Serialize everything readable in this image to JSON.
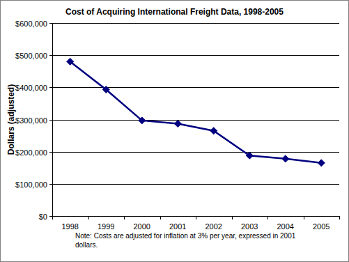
{
  "chart_data": {
    "type": "line",
    "title": "Cost of Acquiring International Freight Data, 1998-2005",
    "y_label": "Dollars (adjusted)",
    "note": "Note: Costs are adjusted for inflation at 3% per year, expressed in 2001 dollars.",
    "categories": [
      "1998",
      "1999",
      "2000",
      "2001",
      "2002",
      "2003",
      "2004",
      "2005"
    ],
    "values": [
      480000,
      393000,
      297000,
      287000,
      265000,
      188000,
      178000,
      165000
    ],
    "color": "#000080",
    "marker": "diamond",
    "line_style": "solid",
    "ylim": [
      0,
      600000
    ],
    "yticks": [
      {
        "value": 0,
        "label": "$0"
      },
      {
        "value": 100000,
        "label": "$100,000"
      },
      {
        "value": 200000,
        "label": "$200,000"
      },
      {
        "value": 300000,
        "label": "$300,000"
      },
      {
        "value": 400000,
        "label": "$400,000"
      },
      {
        "value": 500000,
        "label": "$500,000"
      },
      {
        "value": 600000,
        "label": "$600,000"
      }
    ],
    "grid": true
  }
}
